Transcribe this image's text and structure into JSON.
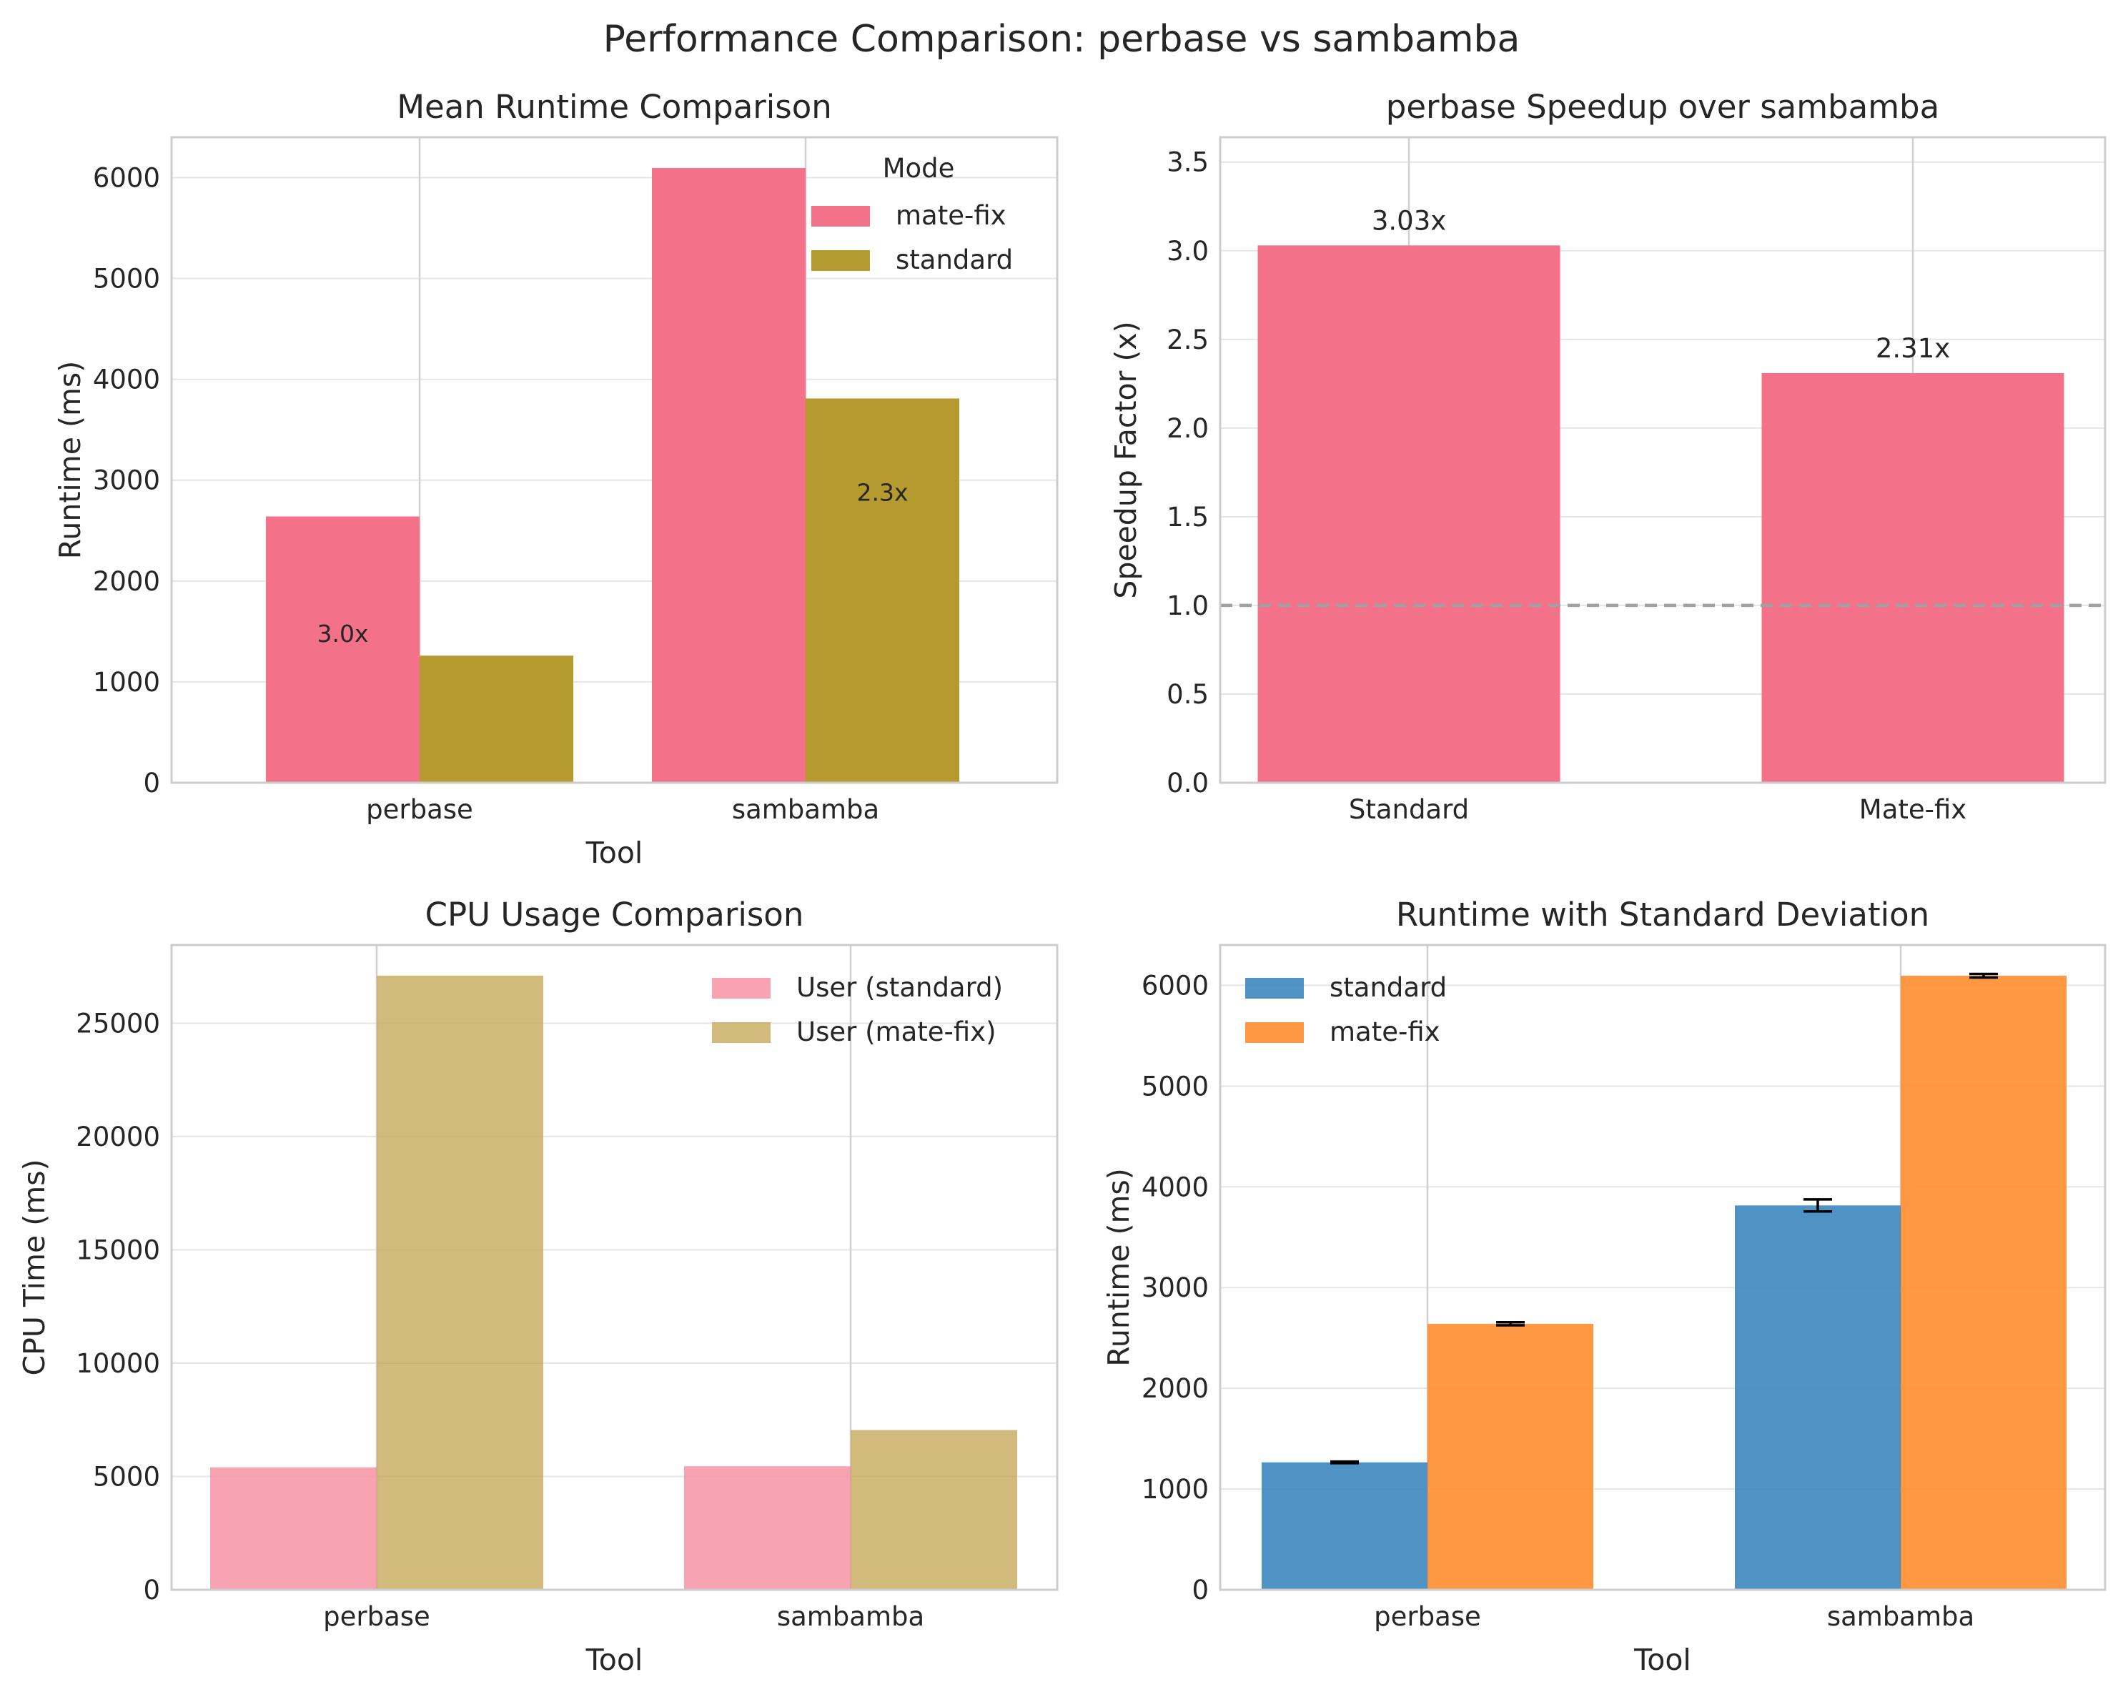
{
  "figure": {
    "title": "Performance Comparison: perbase vs sambamba"
  },
  "colors": {
    "pink": "#f37189",
    "olive": "#b59a2f",
    "pink_light": "#f58c9f",
    "olive_light": "#c5a95a",
    "blue": "#3c87bf",
    "orange": "#ff8c2f",
    "refline": "#a0a0a0"
  },
  "chart_data": [
    {
      "type": "bar",
      "title": "Mean Runtime Comparison",
      "xlabel": "Tool",
      "ylabel": "Runtime (ms)",
      "categories": [
        "perbase",
        "sambamba"
      ],
      "series": [
        {
          "name": "mate-fix",
          "values": [
            2640,
            6095
          ],
          "color": "#f37189"
        },
        {
          "name": "standard",
          "values": [
            1260,
            3810
          ],
          "color": "#b59a2f"
        }
      ],
      "annotations": [
        {
          "text": "3.0x",
          "category": "perbase",
          "series": "mate-fix",
          "y": 1480
        },
        {
          "text": "2.3x",
          "category": "sambamba",
          "series": "standard",
          "y": 2880
        }
      ],
      "legend": {
        "title": "Mode",
        "position": "top-right"
      },
      "ylim": [
        0,
        6400
      ],
      "yticks": [
        0,
        1000,
        2000,
        3000,
        4000,
        5000,
        6000
      ],
      "grid": true
    },
    {
      "type": "bar",
      "title": "perbase Speedup over sambamba",
      "xlabel": "",
      "ylabel": "Speedup Factor (x)",
      "categories": [
        "Standard",
        "Mate-fix"
      ],
      "values": [
        3.03,
        2.31
      ],
      "value_labels": [
        "3.03x",
        "2.31x"
      ],
      "reference_line": 1.0,
      "ylim": [
        0,
        3.64
      ],
      "yticks": [
        0.0,
        0.5,
        1.0,
        1.5,
        2.0,
        2.5,
        3.0,
        3.5
      ],
      "ytick_labels": [
        "0.0",
        "0.5",
        "1.0",
        "1.5",
        "2.0",
        "2.5",
        "3.0",
        "3.5"
      ],
      "grid": true
    },
    {
      "type": "bar",
      "title": "CPU Usage Comparison",
      "xlabel": "Tool",
      "ylabel": "CPU Time (ms)",
      "categories": [
        "perbase",
        "sambamba"
      ],
      "series": [
        {
          "name": "User (standard)",
          "values": [
            5400,
            5450
          ],
          "color": "#f58c9f"
        },
        {
          "name": "User (mate-fix)",
          "values": [
            27100,
            7050
          ],
          "color": "#c5a95a"
        }
      ],
      "legend": {
        "position": "top-right"
      },
      "ylim": [
        0,
        28450
      ],
      "yticks": [
        0,
        5000,
        10000,
        15000,
        20000,
        25000
      ],
      "grid": true
    },
    {
      "type": "bar",
      "title": "Runtime with Standard Deviation",
      "xlabel": "Tool",
      "ylabel": "Runtime (ms)",
      "categories": [
        "perbase",
        "sambamba"
      ],
      "series": [
        {
          "name": "standard",
          "values": [
            1265,
            3815
          ],
          "errors": [
            8,
            60
          ],
          "color": "#3c87bf"
        },
        {
          "name": "mate-fix",
          "values": [
            2640,
            6095
          ],
          "errors": [
            15,
            18
          ],
          "color": "#ff8c2f"
        }
      ],
      "legend": {
        "position": "top-left"
      },
      "ylim": [
        0,
        6400
      ],
      "yticks": [
        0,
        1000,
        2000,
        3000,
        4000,
        5000,
        6000
      ],
      "grid": true
    }
  ]
}
